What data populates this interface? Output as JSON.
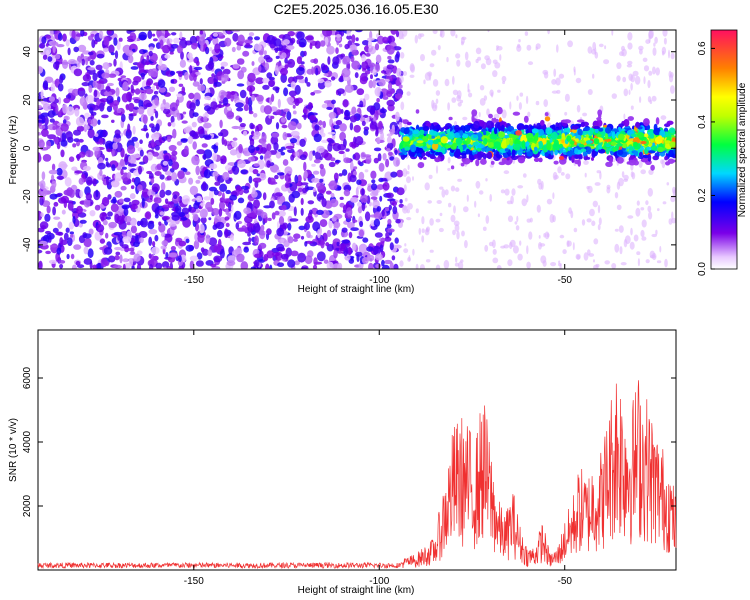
{
  "title": "C2E5.2025.036.16.05.E30",
  "colors": {
    "snr_line": "#f03030",
    "frame": "#000000"
  },
  "chart_data": [
    {
      "type": "heatmap",
      "xlabel": "Height of straight line (km)",
      "ylabel": "Frequency (Hz)",
      "xlim": [
        -192,
        -20
      ],
      "ylim": [
        -50,
        49
      ],
      "xticks": [
        "-150",
        "-100",
        "-50"
      ],
      "yticks": [
        "-40",
        "-20",
        "0",
        "20",
        "40"
      ],
      "colorbar": {
        "label": "Normalized spectral amplitude",
        "range": [
          0.0,
          0.65
        ],
        "ticks": [
          "0.0",
          "0.2",
          "0.4",
          "0.6"
        ],
        "colormap": "gnuplot-rainbow-on-white"
      },
      "regions": [
        {
          "x_range": [
            -192,
            -94
          ],
          "description": "uniform noise, amplitude ~0.05-0.15, all frequencies"
        },
        {
          "x_range": [
            -94,
            -20
          ],
          "freq_center": 3,
          "freq_halfwidth": 8,
          "amplitude": "0.1-0.6"
        }
      ]
    },
    {
      "type": "line",
      "xlabel": "Height of straight line (km)",
      "ylabel": "SNR (10 * v/v)",
      "xlim": [
        -192,
        -20
      ],
      "ylim": [
        0,
        7500
      ],
      "xticks": [
        "-150",
        "-100",
        "-50"
      ],
      "yticks": [
        "2000",
        "4000",
        "6000"
      ],
      "series": [
        {
          "x": [
            -192,
            -180,
            -170,
            -160,
            -150,
            -140,
            -130,
            -120,
            -110,
            -100,
            -95,
            -90,
            -85,
            -82,
            -80,
            -78,
            -76,
            -74,
            -72,
            -70,
            -68,
            -66,
            -64,
            -62,
            -60,
            -58,
            -56,
            -54,
            -52,
            -50,
            -48,
            -46,
            -44,
            -42,
            -40,
            -38,
            -36,
            -34,
            -32,
            -30,
            -28,
            -26,
            -24,
            -22,
            -20
          ],
          "y": [
            150,
            150,
            160,
            150,
            160,
            150,
            150,
            160,
            150,
            160,
            180,
            300,
            600,
            1800,
            2600,
            2800,
            2600,
            2400,
            3200,
            2300,
            1300,
            1000,
            1500,
            800,
            400,
            450,
            900,
            300,
            400,
            900,
            1300,
            1900,
            1700,
            2100,
            2200,
            3000,
            3800,
            3300,
            3000,
            3600,
            3200,
            2700,
            2300,
            2000,
            1300
          ]
        }
      ]
    }
  ]
}
